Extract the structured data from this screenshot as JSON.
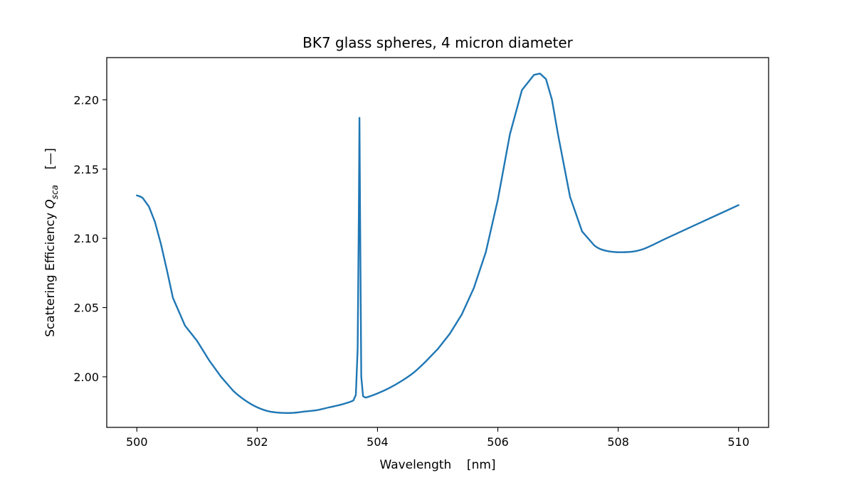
{
  "chart_data": {
    "type": "line",
    "title": "BK7 glass spheres, 4 micron diameter",
    "xlabel": "Wavelength    [nm]",
    "ylabel_main": "Scattering Efficiency ",
    "ylabel_symbol": "Q",
    "ylabel_subscript": "sca",
    "ylabel_units": "    [—]",
    "xlim": [
      499.5,
      510.5
    ],
    "ylim": [
      1.9635,
      2.2305
    ],
    "x_ticks": [
      500,
      502,
      504,
      506,
      508,
      510
    ],
    "x_tick_labels": [
      "500",
      "502",
      "504",
      "506",
      "508",
      "510"
    ],
    "y_ticks": [
      2.0,
      2.05,
      2.1,
      2.15,
      2.2
    ],
    "y_tick_labels": [
      "2.00",
      "2.05",
      "2.10",
      "2.15",
      "2.20"
    ],
    "grid": false,
    "colors": {
      "line": "#1f77b4",
      "axes": "#000000"
    },
    "series": [
      {
        "x": [
          500.0,
          500.1,
          500.2,
          500.3,
          500.4,
          500.5,
          500.6,
          500.8,
          501.0,
          501.2,
          501.4,
          501.6,
          501.8,
          502.0,
          502.2,
          502.4,
          502.6,
          502.8,
          503.0,
          503.2,
          503.4,
          503.6,
          503.64,
          503.67,
          503.69,
          503.7,
          503.71,
          503.73,
          503.76,
          503.8,
          504.0,
          504.2,
          504.4,
          504.6,
          504.8,
          505.0,
          505.2,
          505.4,
          505.6,
          505.8,
          506.0,
          506.2,
          506.4,
          506.6,
          506.7,
          506.8,
          506.9,
          507.0,
          507.2,
          507.4,
          507.6,
          507.8,
          508.1,
          508.4,
          508.8,
          509.2,
          509.6,
          510.0
        ],
        "y": [
          2.131,
          2.129,
          2.123,
          2.112,
          2.096,
          2.077,
          2.057,
          2.037,
          2.026,
          2.012,
          2.0,
          1.99,
          1.983,
          1.978,
          1.975,
          1.974,
          1.974,
          1.975,
          1.976,
          1.978,
          1.98,
          1.983,
          1.987,
          2.02,
          2.12,
          2.187,
          2.12,
          2.0,
          1.986,
          1.985,
          1.988,
          1.992,
          1.997,
          2.003,
          2.011,
          2.02,
          2.031,
          2.045,
          2.064,
          2.09,
          2.128,
          2.175,
          2.207,
          2.218,
          2.219,
          2.215,
          2.2,
          2.175,
          2.13,
          2.105,
          2.095,
          2.091,
          2.09,
          2.092,
          2.1,
          2.108,
          2.116,
          2.124
        ]
      }
    ]
  }
}
